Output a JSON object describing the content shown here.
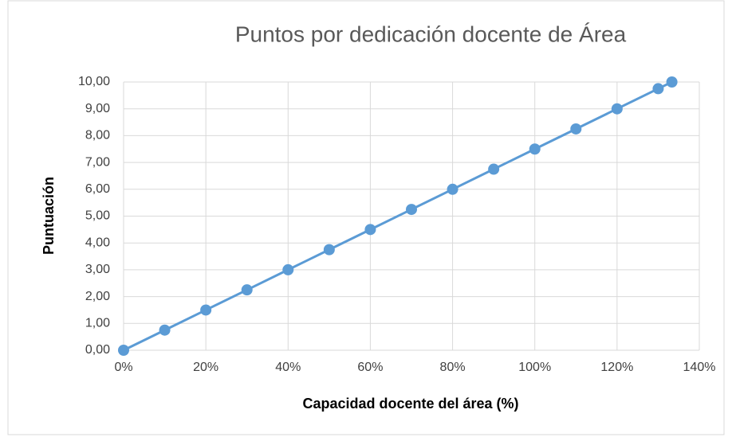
{
  "chart_data": {
    "type": "line",
    "title": "Puntos por dedicación docente de Área",
    "x_label": "Capacidad docente del área (%)",
    "y_label": "Puntuación",
    "x": [
      0,
      10,
      20,
      30,
      40,
      50,
      60,
      70,
      80,
      90,
      100,
      110,
      120,
      130,
      133.33
    ],
    "values": [
      0,
      0.75,
      1.5,
      2.25,
      3,
      3.75,
      4.5,
      5.25,
      6,
      6.75,
      7.5,
      8.25,
      9,
      9.75,
      10
    ],
    "color": "#5b9bd5",
    "xlim": [
      0,
      140
    ],
    "xticks": [
      {
        "value": 0,
        "label": "0%"
      },
      {
        "value": 20,
        "label": "20%"
      },
      {
        "value": 40,
        "label": "40%"
      },
      {
        "value": 60,
        "label": "60%"
      },
      {
        "value": 80,
        "label": "80%"
      },
      {
        "value": 100,
        "label": "100%"
      },
      {
        "value": 120,
        "label": "120%"
      },
      {
        "value": 140,
        "label": "140%"
      }
    ],
    "ylim": [
      0,
      10
    ],
    "yticks": [
      {
        "value": 0,
        "label": "0,00"
      },
      {
        "value": 1,
        "label": "1,00"
      },
      {
        "value": 2,
        "label": "2,00"
      },
      {
        "value": 3,
        "label": "3,00"
      },
      {
        "value": 4,
        "label": "4,00"
      },
      {
        "value": 5,
        "label": "5,00"
      },
      {
        "value": 6,
        "label": "6,00"
      },
      {
        "value": 7,
        "label": "7,00"
      },
      {
        "value": 8,
        "label": "8,00"
      },
      {
        "value": 9,
        "label": "9,00"
      },
      {
        "value": 10,
        "label": "10,00"
      }
    ],
    "grid": true
  }
}
